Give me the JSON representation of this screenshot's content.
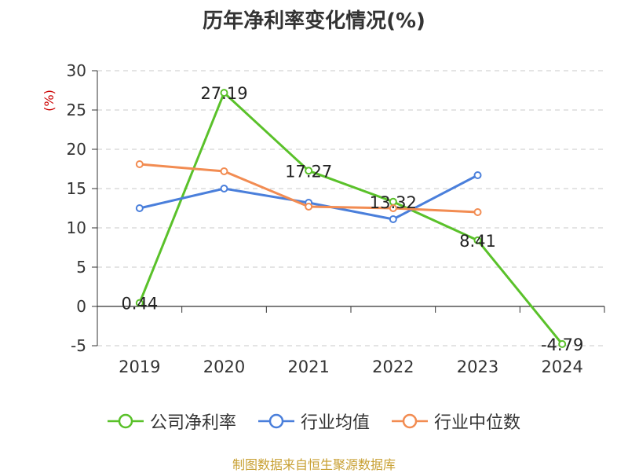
{
  "chart_data": {
    "type": "line",
    "title": "历年净利率变化情况(%)",
    "ylabel": "(%)",
    "xlabel": "",
    "categories": [
      "2019",
      "2020",
      "2021",
      "2022",
      "2023",
      "2024"
    ],
    "ylim": [
      -5,
      30
    ],
    "yticks": [
      -5,
      0,
      5,
      10,
      15,
      20,
      25,
      30
    ],
    "grid": true,
    "legend_position": "bottom",
    "series": [
      {
        "name": "公司净利率",
        "color": "#5ac12a",
        "values": [
          0.44,
          27.19,
          17.27,
          13.32,
          8.41,
          -4.79
        ],
        "labels": [
          "0.44",
          "27.19",
          "17.27",
          "13.32",
          "8.41",
          "-4.79"
        ]
      },
      {
        "name": "行业均值",
        "color": "#4a7fdb",
        "values": [
          12.5,
          15.0,
          13.2,
          11.1,
          16.7,
          null
        ]
      },
      {
        "name": "行业中位数",
        "color": "#f28c52",
        "values": [
          18.1,
          17.2,
          12.7,
          12.5,
          12.0,
          null
        ]
      }
    ]
  },
  "footer": {
    "source": "制图数据来自恒生聚源数据库"
  }
}
